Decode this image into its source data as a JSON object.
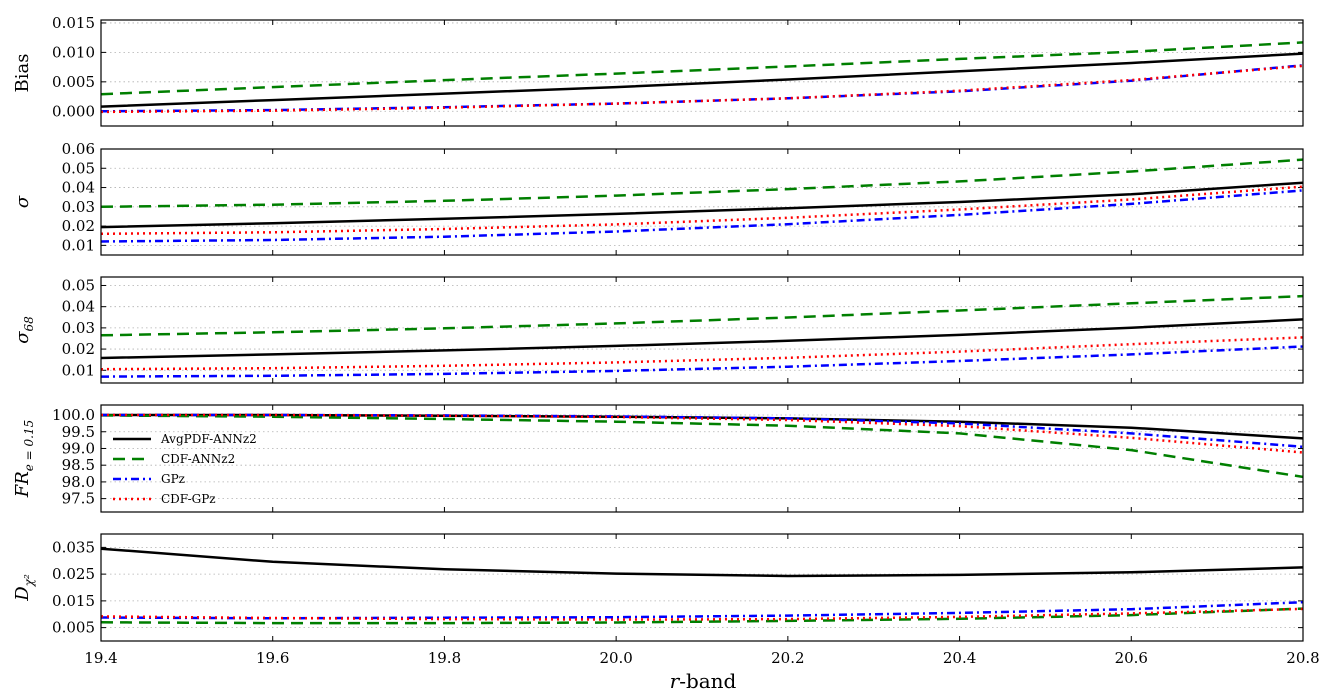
{
  "chart_data": {
    "type": "line",
    "shared_x": {
      "label": "r-band",
      "label_italic_part": "r",
      "label_rest": "-band",
      "lim": [
        19.4,
        20.8
      ],
      "ticks": [
        19.4,
        19.6,
        19.8,
        20.0,
        20.2,
        20.4,
        20.6,
        20.8
      ],
      "tick_labels": [
        "19.4",
        "19.6",
        "19.8",
        "20.0",
        "20.2",
        "20.4",
        "20.6",
        "20.8"
      ]
    },
    "legend": {
      "placement": "left (panel 4)",
      "entries": [
        "AvgPDF-ANNz2",
        "CDF-ANNz2",
        "GPz",
        "CDF-GPz"
      ]
    },
    "styles": {
      "AvgPDF-ANNz2": {
        "color": "#000000",
        "dash": ""
      },
      "CDF-ANNz2": {
        "color": "#007f00",
        "dash": "12 7"
      },
      "GPz": {
        "color": "#0000ff",
        "dash": "8 4 2 4"
      },
      "CDF-GPz": {
        "color": "#ff0000",
        "dash": "2 4"
      }
    },
    "panels": [
      {
        "id": "bias",
        "ylabel_main": "Bias",
        "ylabel_sub": "",
        "ylim": [
          -0.0025,
          0.0155
        ],
        "yticks": [
          0.0,
          0.005,
          0.01,
          0.015
        ],
        "ytick_labels": [
          "0.000",
          "0.005",
          "0.010",
          "0.015"
        ],
        "grid": true,
        "series": [
          {
            "name": "AvgPDF-ANNz2",
            "x": [
              19.4,
              19.6,
              19.8,
              20.0,
              20.2,
              20.4,
              20.6,
              20.8
            ],
            "y": [
              0.0008,
              0.0019,
              0.003,
              0.0041,
              0.0054,
              0.0068,
              0.0082,
              0.0098
            ]
          },
          {
            "name": "CDF-ANNz2",
            "x": [
              19.4,
              19.6,
              19.8,
              20.0,
              20.2,
              20.4,
              20.6,
              20.8
            ],
            "y": [
              0.0029,
              0.0041,
              0.0053,
              0.0064,
              0.0076,
              0.0089,
              0.0101,
              0.0117
            ]
          },
          {
            "name": "GPz",
            "x": [
              19.4,
              19.6,
              19.8,
              20.0,
              20.2,
              20.4,
              20.6,
              20.8
            ],
            "y": [
              0.0,
              0.0002,
              0.0007,
              0.0013,
              0.0022,
              0.0034,
              0.0052,
              0.0078
            ]
          },
          {
            "name": "CDF-GPz",
            "x": [
              19.4,
              19.6,
              19.8,
              20.0,
              20.2,
              20.4,
              20.6,
              20.8
            ],
            "y": [
              -0.0001,
              0.0001,
              0.0006,
              0.0013,
              0.0022,
              0.0035,
              0.0053,
              0.0077
            ]
          }
        ]
      },
      {
        "id": "sigma",
        "ylabel_main": "σ",
        "ylabel_sub": "",
        "ylim": [
          0.005,
          0.06
        ],
        "yticks": [
          0.01,
          0.02,
          0.03,
          0.04,
          0.05,
          0.06
        ],
        "ytick_labels": [
          "0.01",
          "0.02",
          "0.03",
          "0.04",
          "0.05",
          "0.06"
        ],
        "grid": true,
        "series": [
          {
            "name": "AvgPDF-ANNz2",
            "x": [
              19.4,
              19.6,
              19.8,
              20.0,
              20.2,
              20.4,
              20.6,
              20.8
            ],
            "y": [
              0.0195,
              0.0215,
              0.0238,
              0.0263,
              0.0293,
              0.0325,
              0.0365,
              0.0425
            ]
          },
          {
            "name": "CDF-ANNz2",
            "x": [
              19.4,
              19.6,
              19.8,
              20.0,
              20.2,
              20.4,
              20.6,
              20.8
            ],
            "y": [
              0.03,
              0.0311,
              0.0331,
              0.0358,
              0.0392,
              0.0432,
              0.0483,
              0.0545
            ]
          },
          {
            "name": "GPz",
            "x": [
              19.4,
              19.6,
              19.8,
              20.0,
              20.2,
              20.4,
              20.6,
              20.8
            ],
            "y": [
              0.012,
              0.0128,
              0.0145,
              0.0172,
              0.021,
              0.0258,
              0.0315,
              0.0385
            ]
          },
          {
            "name": "CDF-GPz",
            "x": [
              19.4,
              19.6,
              19.8,
              20.0,
              20.2,
              20.4,
              20.6,
              20.8
            ],
            "y": [
              0.016,
              0.0168,
              0.0185,
              0.0209,
              0.0243,
              0.0286,
              0.0338,
              0.0405
            ]
          }
        ]
      },
      {
        "id": "sigma68",
        "ylabel_main": "σ",
        "ylabel_sub": "68",
        "ylim": [
          0.004,
          0.054
        ],
        "yticks": [
          0.01,
          0.02,
          0.03,
          0.04,
          0.05
        ],
        "ytick_labels": [
          "0.01",
          "0.02",
          "0.03",
          "0.04",
          "0.05"
        ],
        "grid": true,
        "series": [
          {
            "name": "AvgPDF-ANNz2",
            "x": [
              19.4,
              19.6,
              19.8,
              20.0,
              20.2,
              20.4,
              20.6,
              20.8
            ],
            "y": [
              0.0158,
              0.0175,
              0.0194,
              0.0215,
              0.0239,
              0.0267,
              0.0301,
              0.034
            ]
          },
          {
            "name": "CDF-ANNz2",
            "x": [
              19.4,
              19.6,
              19.8,
              20.0,
              20.2,
              20.4,
              20.6,
              20.8
            ],
            "y": [
              0.0265,
              0.0279,
              0.0298,
              0.0321,
              0.0349,
              0.0382,
              0.0416,
              0.045
            ]
          },
          {
            "name": "GPz",
            "x": [
              19.4,
              19.6,
              19.8,
              20.0,
              20.2,
              20.4,
              20.6,
              20.8
            ],
            "y": [
              0.007,
              0.0074,
              0.0083,
              0.0097,
              0.0117,
              0.0144,
              0.0175,
              0.0212
            ]
          },
          {
            "name": "CDF-GPz",
            "x": [
              19.4,
              19.6,
              19.8,
              20.0,
              20.2,
              20.4,
              20.6,
              20.8
            ],
            "y": [
              0.0105,
              0.011,
              0.0121,
              0.0137,
              0.0159,
              0.0188,
              0.0223,
              0.0255
            ]
          }
        ]
      },
      {
        "id": "fr",
        "ylabel_main": "FR",
        "ylabel_sub": "e = 0.15",
        "ylim": [
          97.1,
          100.3
        ],
        "yticks": [
          97.5,
          98.0,
          98.5,
          99.0,
          99.5,
          100.0
        ],
        "ytick_labels": [
          "97.5",
          "98.0",
          "98.5",
          "99.0",
          "99.5",
          "100.0"
        ],
        "grid": true,
        "series": [
          {
            "name": "AvgPDF-ANNz2",
            "x": [
              19.4,
              19.6,
              19.8,
              20.0,
              20.2,
              20.4,
              20.6,
              20.8
            ],
            "y": [
              100.0,
              100.0,
              99.98,
              99.95,
              99.9,
              99.8,
              99.62,
              99.3
            ]
          },
          {
            "name": "CDF-ANNz2",
            "x": [
              19.4,
              19.6,
              19.8,
              20.0,
              20.2,
              20.4,
              20.6,
              20.8
            ],
            "y": [
              99.99,
              99.95,
              99.88,
              99.8,
              99.68,
              99.45,
              98.95,
              98.15
            ]
          },
          {
            "name": "GPz",
            "x": [
              19.4,
              19.6,
              19.8,
              20.0,
              20.2,
              20.4,
              20.6,
              20.8
            ],
            "y": [
              100.0,
              100.0,
              99.99,
              99.96,
              99.9,
              99.75,
              99.45,
              99.05
            ]
          },
          {
            "name": "CDF-GPz",
            "x": [
              19.4,
              19.6,
              19.8,
              20.0,
              20.2,
              20.4,
              20.6,
              20.8
            ],
            "y": [
              100.0,
              100.0,
              99.98,
              99.94,
              99.85,
              99.67,
              99.32,
              98.88
            ]
          }
        ]
      },
      {
        "id": "dchi2",
        "ylabel_main": "D",
        "ylabel_sub": "χ²",
        "ylim": [
          0.0,
          0.04
        ],
        "yticks": [
          0.005,
          0.015,
          0.025,
          0.035
        ],
        "ytick_labels": [
          "0.005",
          "0.015",
          "0.025",
          "0.035"
        ],
        "grid": true,
        "series": [
          {
            "name": "AvgPDF-ANNz2",
            "x": [
              19.4,
              19.6,
              19.8,
              20.0,
              20.2,
              20.4,
              20.6,
              20.8
            ],
            "y": [
              0.0345,
              0.0296,
              0.0268,
              0.0252,
              0.0243,
              0.0247,
              0.0257,
              0.0275
            ]
          },
          {
            "name": "CDF-ANNz2",
            "x": [
              19.4,
              19.6,
              19.8,
              20.0,
              20.2,
              20.4,
              20.6,
              20.8
            ],
            "y": [
              0.007,
              0.0067,
              0.0067,
              0.0069,
              0.0075,
              0.0083,
              0.0097,
              0.0121
            ]
          },
          {
            "name": "GPz",
            "x": [
              19.4,
              19.6,
              19.8,
              20.0,
              20.2,
              20.4,
              20.6,
              20.8
            ],
            "y": [
              0.0088,
              0.0085,
              0.0087,
              0.0089,
              0.0095,
              0.0105,
              0.0119,
              0.0145
            ]
          },
          {
            "name": "CDF-GPz",
            "x": [
              19.4,
              19.6,
              19.8,
              20.0,
              20.2,
              20.4,
              20.6,
              20.8
            ],
            "y": [
              0.0092,
              0.0086,
              0.0082,
              0.008,
              0.0082,
              0.009,
              0.0103,
              0.012
            ]
          }
        ]
      }
    ]
  }
}
